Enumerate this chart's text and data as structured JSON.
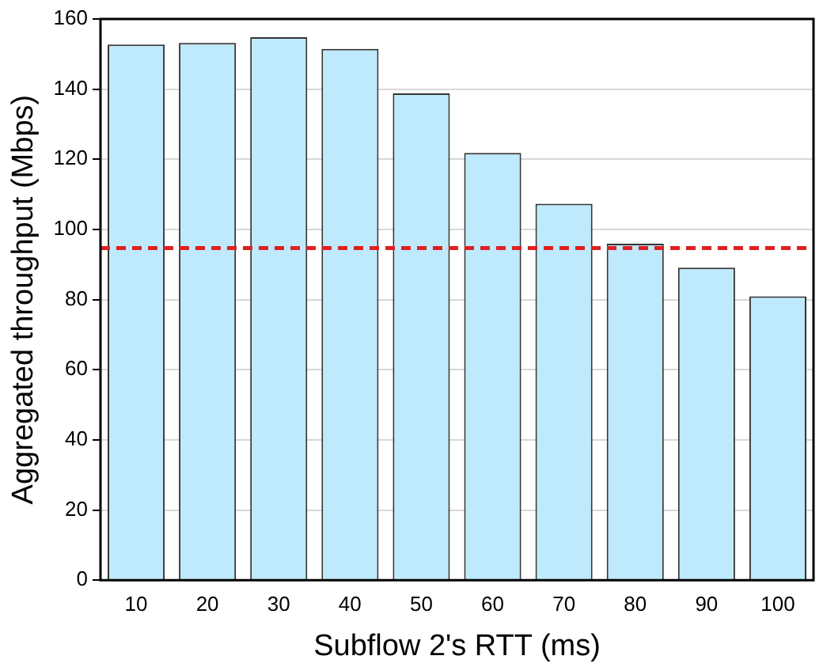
{
  "chart_data": {
    "type": "bar",
    "xlabel": "Subflow 2's RTT (ms)",
    "ylabel": "Aggregated throughput (Mbps)",
    "categories": [
      "10",
      "20",
      "30",
      "40",
      "50",
      "60",
      "70",
      "80",
      "90",
      "100"
    ],
    "values": [
      152.7,
      153.2,
      154.8,
      151.5,
      138.8,
      121.8,
      107.3,
      95.9,
      89.1,
      80.9
    ],
    "color": "#bfe9fd",
    "ylim": [
      0,
      160
    ],
    "yticks": [
      0,
      20,
      40,
      60,
      80,
      100,
      120,
      140,
      160
    ],
    "grid": "y",
    "legend": false,
    "ref_lines": [
      {
        "axis": "y",
        "value": 94.7,
        "color": "#e02020",
        "line_style": "dashed"
      }
    ]
  }
}
